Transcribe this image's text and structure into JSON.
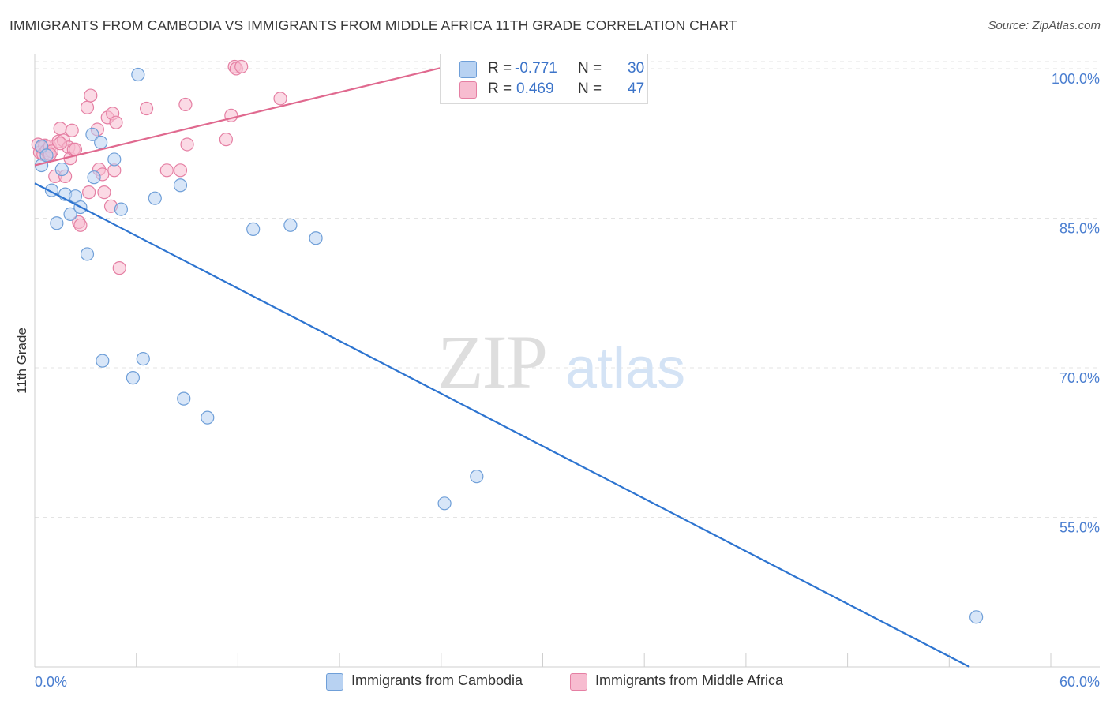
{
  "title": "IMMIGRANTS FROM CAMBODIA VS IMMIGRANTS FROM MIDDLE AFRICA 11TH GRADE CORRELATION CHART",
  "source": "Source: ZipAtlas.com",
  "watermark": {
    "zip": "ZIP",
    "atlas": "atlas"
  },
  "legend": {
    "r_label": "R =",
    "n_label": "N =",
    "rows": [
      {
        "r": "-0.771",
        "n": "30"
      },
      {
        "r": "0.469",
        "n": "47"
      }
    ]
  },
  "colors": {
    "blue_fill": "#b8d2f2",
    "blue_stroke": "#6f9fd8",
    "blue_line": "#2d74d0",
    "pink_fill": "#f7bcd0",
    "pink_stroke": "#e57fa3",
    "pink_line": "#e0698f",
    "tick_text": "#4a7ed0",
    "grid": "#e3e3e3"
  },
  "chart_data": {
    "type": "scatter",
    "title": "IMMIGRANTS FROM CAMBODIA VS IMMIGRANTS FROM MIDDLE AFRICA 11TH GRADE CORRELATION CHART",
    "xlabel": "",
    "ylabel": "11th Grade",
    "xlim": [
      0,
      60
    ],
    "ylim": [
      40,
      101.5
    ],
    "x_tick_labels": [
      "0.0%",
      "60.0%"
    ],
    "y_ticks": [
      55,
      70,
      85,
      100
    ],
    "y_tick_labels": [
      "55.0%",
      "70.0%",
      "85.0%",
      "100.0%"
    ],
    "series": [
      {
        "name": "Immigrants from Cambodia",
        "color": "blue",
        "r": -0.771,
        "n": 30,
        "points": [
          [
            0.4,
            92.2
          ],
          [
            0.4,
            90.3
          ],
          [
            0.7,
            91.3
          ],
          [
            1.0,
            87.8
          ],
          [
            1.3,
            84.5
          ],
          [
            1.6,
            89.9
          ],
          [
            1.8,
            87.4
          ],
          [
            2.1,
            85.4
          ],
          [
            2.4,
            87.2
          ],
          [
            2.7,
            86.1
          ],
          [
            3.1,
            81.4
          ],
          [
            3.4,
            93.4
          ],
          [
            3.5,
            89.1
          ],
          [
            3.9,
            92.6
          ],
          [
            4.0,
            70.7
          ],
          [
            4.7,
            90.9
          ],
          [
            5.1,
            85.9
          ],
          [
            5.8,
            69.0
          ],
          [
            6.1,
            99.4
          ],
          [
            6.4,
            70.9
          ],
          [
            7.1,
            87.0
          ],
          [
            8.6,
            88.3
          ],
          [
            8.8,
            66.9
          ],
          [
            10.2,
            65.0
          ],
          [
            12.9,
            83.9
          ],
          [
            15.1,
            84.3
          ],
          [
            16.6,
            83.0
          ],
          [
            24.2,
            56.4
          ],
          [
            26.1,
            59.1
          ],
          [
            55.6,
            45.0
          ]
        ],
        "trend": {
          "x": [
            0,
            55.2
          ],
          "y": [
            88.5,
            40.0
          ]
        }
      },
      {
        "name": "Immigrants from Middle Africa",
        "color": "pink",
        "r": 0.469,
        "n": 47,
        "points": [
          [
            0.2,
            92.4
          ],
          [
            0.3,
            91.6
          ],
          [
            0.4,
            92.1
          ],
          [
            0.5,
            91.4
          ],
          [
            0.6,
            92.3
          ],
          [
            0.7,
            91.8
          ],
          [
            0.8,
            91.5
          ],
          [
            0.9,
            92.2
          ],
          [
            1.0,
            91.7
          ],
          [
            1.2,
            89.2
          ],
          [
            1.4,
            92.7
          ],
          [
            1.5,
            94.0
          ],
          [
            1.7,
            92.8
          ],
          [
            1.8,
            89.2
          ],
          [
            2.0,
            92.1
          ],
          [
            2.1,
            91.0
          ],
          [
            2.2,
            93.8
          ],
          [
            2.3,
            91.9
          ],
          [
            2.6,
            84.6
          ],
          [
            2.7,
            84.3
          ],
          [
            3.1,
            96.1
          ],
          [
            3.2,
            87.6
          ],
          [
            3.3,
            97.3
          ],
          [
            3.7,
            93.9
          ],
          [
            3.8,
            89.9
          ],
          [
            4.0,
            89.4
          ],
          [
            4.1,
            87.6
          ],
          [
            4.3,
            95.1
          ],
          [
            4.5,
            86.2
          ],
          [
            4.6,
            95.5
          ],
          [
            4.7,
            89.8
          ],
          [
            4.8,
            94.6
          ],
          [
            5.0,
            80.0
          ],
          [
            6.6,
            96.0
          ],
          [
            7.8,
            89.8
          ],
          [
            8.6,
            89.8
          ],
          [
            8.9,
            96.4
          ],
          [
            9.0,
            92.4
          ],
          [
            11.3,
            92.9
          ],
          [
            11.6,
            95.3
          ],
          [
            11.8,
            100.2
          ],
          [
            11.9,
            100.0
          ],
          [
            12.2,
            100.2
          ],
          [
            14.5,
            97.0
          ],
          [
            2.4,
            91.9
          ],
          [
            0.9,
            91.4
          ],
          [
            1.5,
            92.5
          ]
        ],
        "trend": {
          "x": [
            0,
            24.3
          ],
          "y": [
            90.3,
            100.2
          ]
        }
      }
    ]
  },
  "bottom_legend": [
    "Immigrants from Cambodia",
    "Immigrants from Middle Africa"
  ]
}
